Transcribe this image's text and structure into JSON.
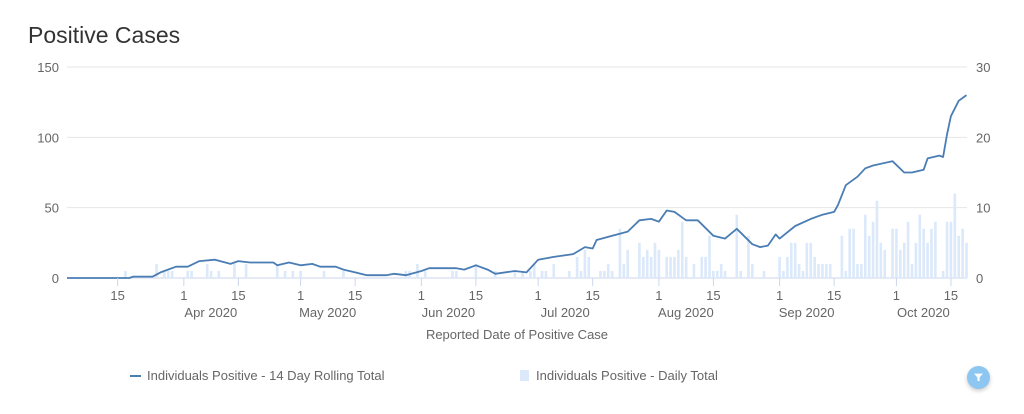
{
  "title": "Positive Cases",
  "legend": {
    "line_label": "Individuals Positive - 14 Day Rolling Total",
    "bar_label": "Individuals Positive - Daily Total"
  },
  "colors": {
    "line": "#4a7db4",
    "bars": "#dbe9fa",
    "grid": "#e6e6e6",
    "filter": "#8dc6f0"
  },
  "filter_icon": "funnel-icon",
  "chart_data": {
    "type": "line+bar",
    "title": "Positive Cases",
    "xlabel": "Reported Date of Positive Case",
    "ylabel_left": "",
    "ylabel_right": "",
    "x_range": [
      "2020-03-02",
      "2020-10-19"
    ],
    "ylim_left": [
      0,
      150
    ],
    "ylim_right": [
      0,
      30
    ],
    "left_ticks": [
      "0",
      "50",
      "100",
      "150"
    ],
    "right_ticks": [
      "0",
      "10",
      "20",
      "30"
    ],
    "x_ticks": [
      {
        "date": "2020-03-15",
        "label": "15"
      },
      {
        "date": "2020-04-01",
        "label": "1",
        "month": "Apr 2020"
      },
      {
        "date": "2020-04-15",
        "label": "15"
      },
      {
        "date": "2020-05-01",
        "label": "1",
        "month": "May 2020"
      },
      {
        "date": "2020-05-15",
        "label": "15"
      },
      {
        "date": "2020-06-01",
        "label": "1",
        "month": "Jun 2020"
      },
      {
        "date": "2020-06-15",
        "label": "15"
      },
      {
        "date": "2020-07-01",
        "label": "1",
        "month": "Jul 2020"
      },
      {
        "date": "2020-07-15",
        "label": "15"
      },
      {
        "date": "2020-08-01",
        "label": "1",
        "month": "Aug 2020"
      },
      {
        "date": "2020-08-15",
        "label": "15"
      },
      {
        "date": "2020-09-01",
        "label": "1",
        "month": "Sep 2020"
      },
      {
        "date": "2020-09-15",
        "label": "15"
      },
      {
        "date": "2020-10-01",
        "label": "1",
        "month": "Oct 2020"
      },
      {
        "date": "2020-10-15",
        "label": "15"
      }
    ],
    "grid": true,
    "legend_position": "bottom",
    "series": [
      {
        "name": "Individuals Positive - 14 Day Rolling Total",
        "type": "line",
        "axis": "left",
        "points": [
          [
            "2020-03-02",
            0
          ],
          [
            "2020-03-18",
            0
          ],
          [
            "2020-03-19",
            1
          ],
          [
            "2020-03-24",
            1
          ],
          [
            "2020-03-26",
            4
          ],
          [
            "2020-03-30",
            8
          ],
          [
            "2020-04-02",
            8
          ],
          [
            "2020-04-05",
            12
          ],
          [
            "2020-04-09",
            13
          ],
          [
            "2020-04-13",
            10
          ],
          [
            "2020-04-15",
            12
          ],
          [
            "2020-04-18",
            11
          ],
          [
            "2020-04-24",
            11
          ],
          [
            "2020-04-25",
            9
          ],
          [
            "2020-04-28",
            11
          ],
          [
            "2020-05-01",
            9
          ],
          [
            "2020-05-04",
            10
          ],
          [
            "2020-05-06",
            8
          ],
          [
            "2020-05-10",
            8
          ],
          [
            "2020-05-12",
            6
          ],
          [
            "2020-05-15",
            4
          ],
          [
            "2020-05-18",
            2
          ],
          [
            "2020-05-23",
            2
          ],
          [
            "2020-05-25",
            3
          ],
          [
            "2020-05-28",
            2
          ],
          [
            "2020-06-01",
            5
          ],
          [
            "2020-06-03",
            7
          ],
          [
            "2020-06-10",
            7
          ],
          [
            "2020-06-12",
            6
          ],
          [
            "2020-06-15",
            9
          ],
          [
            "2020-06-18",
            6
          ],
          [
            "2020-06-20",
            3
          ],
          [
            "2020-06-25",
            5
          ],
          [
            "2020-06-28",
            4
          ],
          [
            "2020-07-01",
            13
          ],
          [
            "2020-07-05",
            15
          ],
          [
            "2020-07-10",
            17
          ],
          [
            "2020-07-13",
            22
          ],
          [
            "2020-07-15",
            21
          ],
          [
            "2020-07-16",
            27
          ],
          [
            "2020-07-20",
            30
          ],
          [
            "2020-07-24",
            33
          ],
          [
            "2020-07-27",
            41
          ],
          [
            "2020-07-30",
            42
          ],
          [
            "2020-08-01",
            40
          ],
          [
            "2020-08-03",
            48
          ],
          [
            "2020-08-05",
            47
          ],
          [
            "2020-08-08",
            41
          ],
          [
            "2020-08-11",
            41
          ],
          [
            "2020-08-15",
            30
          ],
          [
            "2020-08-18",
            28
          ],
          [
            "2020-08-21",
            35
          ],
          [
            "2020-08-25",
            24
          ],
          [
            "2020-08-27",
            22
          ],
          [
            "2020-08-29",
            23
          ],
          [
            "2020-08-31",
            31
          ],
          [
            "2020-09-01",
            28
          ],
          [
            "2020-09-05",
            37
          ],
          [
            "2020-09-09",
            42
          ],
          [
            "2020-09-12",
            45
          ],
          [
            "2020-09-15",
            47
          ],
          [
            "2020-09-16",
            52
          ],
          [
            "2020-09-18",
            66
          ],
          [
            "2020-09-21",
            72
          ],
          [
            "2020-09-23",
            78
          ],
          [
            "2020-09-25",
            80
          ],
          [
            "2020-09-30",
            83
          ],
          [
            "2020-10-03",
            75
          ],
          [
            "2020-10-05",
            75
          ],
          [
            "2020-10-08",
            77
          ],
          [
            "2020-10-09",
            85
          ],
          [
            "2020-10-12",
            87
          ],
          [
            "2020-10-13",
            86
          ],
          [
            "2020-10-14",
            102
          ],
          [
            "2020-10-15",
            115
          ],
          [
            "2020-10-17",
            126
          ],
          [
            "2020-10-19",
            130
          ]
        ]
      },
      {
        "name": "Individuals Positive - Daily Total",
        "type": "bar",
        "axis": "right",
        "points": [
          [
            "2020-03-17",
            1
          ],
          [
            "2020-03-25",
            2
          ],
          [
            "2020-03-27",
            1
          ],
          [
            "2020-03-28",
            1
          ],
          [
            "2020-03-29",
            1
          ],
          [
            "2020-04-02",
            1
          ],
          [
            "2020-04-03",
            1
          ],
          [
            "2020-04-07",
            2
          ],
          [
            "2020-04-08",
            1
          ],
          [
            "2020-04-10",
            1
          ],
          [
            "2020-04-14",
            2
          ],
          [
            "2020-04-17",
            2
          ],
          [
            "2020-04-25",
            2
          ],
          [
            "2020-04-27",
            1
          ],
          [
            "2020-04-29",
            1
          ],
          [
            "2020-05-01",
            1
          ],
          [
            "2020-05-07",
            1
          ],
          [
            "2020-05-12",
            1
          ],
          [
            "2020-05-28",
            1
          ],
          [
            "2020-05-29",
            1
          ],
          [
            "2020-05-31",
            2
          ],
          [
            "2020-06-02",
            1
          ],
          [
            "2020-06-09",
            1
          ],
          [
            "2020-06-10",
            1
          ],
          [
            "2020-06-15",
            2
          ],
          [
            "2020-06-20",
            1
          ],
          [
            "2020-06-25",
            1
          ],
          [
            "2020-06-27",
            1
          ],
          [
            "2020-06-29",
            1
          ],
          [
            "2020-06-30",
            2
          ],
          [
            "2020-07-02",
            1
          ],
          [
            "2020-07-03",
            1
          ],
          [
            "2020-07-05",
            2
          ],
          [
            "2020-07-09",
            1
          ],
          [
            "2020-07-11",
            3
          ],
          [
            "2020-07-12",
            1
          ],
          [
            "2020-07-13",
            4
          ],
          [
            "2020-07-14",
            3
          ],
          [
            "2020-07-17",
            1
          ],
          [
            "2020-07-18",
            1
          ],
          [
            "2020-07-19",
            2
          ],
          [
            "2020-07-20",
            1
          ],
          [
            "2020-07-22",
            7
          ],
          [
            "2020-07-23",
            2
          ],
          [
            "2020-07-24",
            4
          ],
          [
            "2020-07-27",
            5
          ],
          [
            "2020-07-28",
            3
          ],
          [
            "2020-07-29",
            4
          ],
          [
            "2020-07-30",
            3
          ],
          [
            "2020-07-31",
            5
          ],
          [
            "2020-08-01",
            4
          ],
          [
            "2020-08-03",
            3
          ],
          [
            "2020-08-04",
            3
          ],
          [
            "2020-08-05",
            3
          ],
          [
            "2020-08-06",
            4
          ],
          [
            "2020-08-07",
            8
          ],
          [
            "2020-08-08",
            3
          ],
          [
            "2020-08-10",
            2
          ],
          [
            "2020-08-12",
            3
          ],
          [
            "2020-08-13",
            3
          ],
          [
            "2020-08-14",
            6
          ],
          [
            "2020-08-15",
            1
          ],
          [
            "2020-08-16",
            1
          ],
          [
            "2020-08-17",
            2
          ],
          [
            "2020-08-18",
            1
          ],
          [
            "2020-08-21",
            9
          ],
          [
            "2020-08-22",
            1
          ],
          [
            "2020-08-24",
            6
          ],
          [
            "2020-08-25",
            2
          ],
          [
            "2020-08-28",
            1
          ],
          [
            "2020-09-01",
            3
          ],
          [
            "2020-09-02",
            1
          ],
          [
            "2020-09-03",
            3
          ],
          [
            "2020-09-04",
            5
          ],
          [
            "2020-09-05",
            5
          ],
          [
            "2020-09-06",
            2
          ],
          [
            "2020-09-07",
            1
          ],
          [
            "2020-09-08",
            5
          ],
          [
            "2020-09-09",
            5
          ],
          [
            "2020-09-10",
            3
          ],
          [
            "2020-09-11",
            2
          ],
          [
            "2020-09-12",
            2
          ],
          [
            "2020-09-13",
            2
          ],
          [
            "2020-09-14",
            2
          ],
          [
            "2020-09-17",
            6
          ],
          [
            "2020-09-18",
            1
          ],
          [
            "2020-09-19",
            7
          ],
          [
            "2020-09-20",
            7
          ],
          [
            "2020-09-21",
            2
          ],
          [
            "2020-09-22",
            2
          ],
          [
            "2020-09-23",
            9
          ],
          [
            "2020-09-24",
            6
          ],
          [
            "2020-09-25",
            8
          ],
          [
            "2020-09-26",
            11
          ],
          [
            "2020-09-27",
            5
          ],
          [
            "2020-09-28",
            4
          ],
          [
            "2020-09-30",
            7
          ],
          [
            "2020-10-01",
            7
          ],
          [
            "2020-10-02",
            4
          ],
          [
            "2020-10-03",
            5
          ],
          [
            "2020-10-04",
            8
          ],
          [
            "2020-10-05",
            2
          ],
          [
            "2020-10-06",
            5
          ],
          [
            "2020-10-07",
            9
          ],
          [
            "2020-10-08",
            7
          ],
          [
            "2020-10-09",
            5
          ],
          [
            "2020-10-10",
            7
          ],
          [
            "2020-10-11",
            8
          ],
          [
            "2020-10-13",
            1
          ],
          [
            "2020-10-14",
            8
          ],
          [
            "2020-10-15",
            8
          ],
          [
            "2020-10-16",
            12
          ],
          [
            "2020-10-17",
            6
          ],
          [
            "2020-10-18",
            7
          ],
          [
            "2020-10-19",
            5
          ]
        ]
      }
    ]
  }
}
